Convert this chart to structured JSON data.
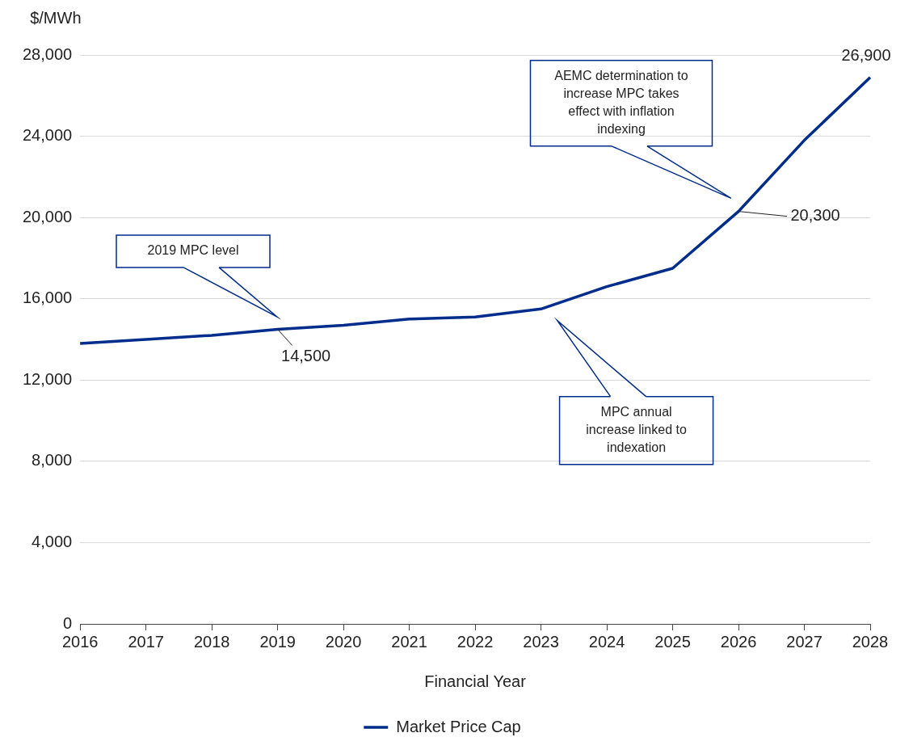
{
  "chart_data": {
    "type": "line",
    "xlabel": "Financial Year",
    "ylabel": "$/MWh",
    "categories": [
      "2016",
      "2017",
      "2018",
      "2019",
      "2020",
      "2021",
      "2022",
      "2023",
      "2024",
      "2025",
      "2026",
      "2027",
      "2028"
    ],
    "series": [
      {
        "name": "Market Price Cap",
        "color": "#002d8c",
        "values": [
          13800,
          14000,
          14200,
          14500,
          14700,
          15000,
          15100,
          15500,
          16600,
          17500,
          20300,
          23800,
          26900
        ],
        "value_labels": [
          null,
          null,
          null,
          "14,500",
          null,
          null,
          null,
          null,
          null,
          null,
          "20,300",
          null,
          "26,900"
        ]
      }
    ],
    "ylim": [
      0,
      28000
    ],
    "yticks": [
      {
        "value": 0,
        "label": "0"
      },
      {
        "value": 4000,
        "label": "4,000"
      },
      {
        "value": 8000,
        "label": "8,000"
      },
      {
        "value": 12000,
        "label": "12,000"
      },
      {
        "value": 16000,
        "label": "16,000"
      },
      {
        "value": 20000,
        "label": "20,000"
      },
      {
        "value": 24000,
        "label": "24,000"
      },
      {
        "value": 28000,
        "label": "28,000"
      }
    ],
    "grid": "y",
    "legend": "bottom",
    "marker": "none",
    "line_style": "solid",
    "annotations": [
      "2019 MPC level",
      "AEMC determination to increase MPC takes effect with inflation indexing",
      "MPC annual increase linked to indexation"
    ]
  }
}
